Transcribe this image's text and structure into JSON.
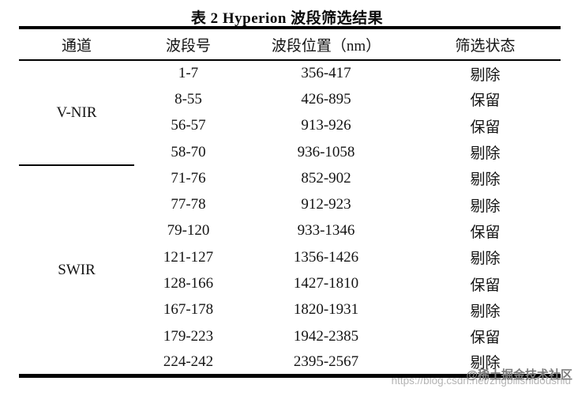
{
  "title": "表 2 Hyperion 波段筛选结果",
  "table": {
    "headers": [
      "通道",
      "波段号",
      "波段位置（nm）",
      "筛选状态"
    ],
    "channels": [
      {
        "label": "V-NIR",
        "span": 4
      },
      {
        "label": "SWIR",
        "span": 8
      }
    ],
    "rows": [
      {
        "band": "1-7",
        "position": "356-417",
        "status": "剔除"
      },
      {
        "band": "8-55",
        "position": "426-895",
        "status": "保留"
      },
      {
        "band": "56-57",
        "position": "913-926",
        "status": "保留"
      },
      {
        "band": "58-70",
        "position": "936-1058",
        "status": "剔除"
      },
      {
        "band": "71-76",
        "position": "852-902",
        "status": "剔除"
      },
      {
        "band": "77-78",
        "position": "912-923",
        "status": "剔除"
      },
      {
        "band": "79-120",
        "position": "933-1346",
        "status": "保留"
      },
      {
        "band": "121-127",
        "position": "1356-1426",
        "status": "剔除"
      },
      {
        "band": "128-166",
        "position": "1427-1810",
        "status": "保留"
      },
      {
        "band": "167-178",
        "position": "1820-1931",
        "status": "剔除"
      },
      {
        "band": "179-223",
        "position": "1942-2385",
        "status": "保留"
      },
      {
        "band": "224-242",
        "position": "2395-2567",
        "status": "剔除"
      }
    ]
  },
  "watermark": {
    "url": "https://blog.csdn.net/zhgbilishidoushiu",
    "community": "@稀土掘金技术社区"
  },
  "colors": {
    "border": "#000000",
    "text": "#141414",
    "watermark_url": "#b4b4b4",
    "watermark_tag": "#7c7c7c"
  }
}
